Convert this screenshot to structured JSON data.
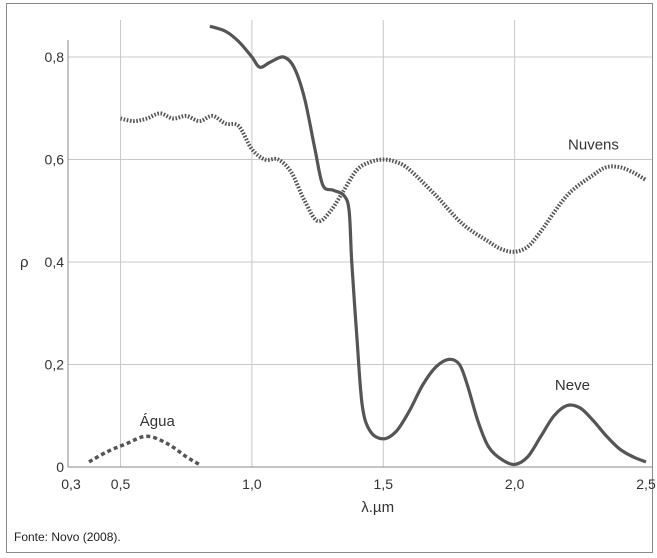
{
  "chart_data": {
    "type": "line",
    "xlabel": "λ.µm",
    "ylabel": "ρ",
    "xlim": [
      0.3,
      2.5
    ],
    "ylim": [
      0,
      0.8
    ],
    "grid": true,
    "x_ticks": [
      {
        "v": 0.3,
        "t": "0,3"
      },
      {
        "v": 0.5,
        "t": "0,5"
      },
      {
        "v": 1.0,
        "t": "1,0"
      },
      {
        "v": 1.5,
        "t": "1,5"
      },
      {
        "v": 2.0,
        "t": "2,0"
      },
      {
        "v": 2.5,
        "t": "2,5"
      }
    ],
    "y_ticks": [
      {
        "v": 0,
        "t": "0"
      },
      {
        "v": 0.2,
        "t": "0,2"
      },
      {
        "v": 0.4,
        "t": "0,4"
      },
      {
        "v": 0.6,
        "t": "0,6"
      },
      {
        "v": 0.8,
        "t": "0,8"
      }
    ],
    "series": [
      {
        "name": "Neve",
        "style": "solid",
        "color": "#555555",
        "points": [
          [
            0.84,
            0.86
          ],
          [
            0.9,
            0.85
          ],
          [
            0.95,
            0.83
          ],
          [
            1.0,
            0.8
          ],
          [
            1.03,
            0.78
          ],
          [
            1.07,
            0.79
          ],
          [
            1.12,
            0.8
          ],
          [
            1.16,
            0.78
          ],
          [
            1.2,
            0.72
          ],
          [
            1.24,
            0.62
          ],
          [
            1.27,
            0.55
          ],
          [
            1.31,
            0.54
          ],
          [
            1.35,
            0.53
          ],
          [
            1.37,
            0.5
          ],
          [
            1.38,
            0.4
          ],
          [
            1.4,
            0.25
          ],
          [
            1.42,
            0.12
          ],
          [
            1.45,
            0.07
          ],
          [
            1.5,
            0.055
          ],
          [
            1.55,
            0.07
          ],
          [
            1.6,
            0.11
          ],
          [
            1.65,
            0.16
          ],
          [
            1.7,
            0.195
          ],
          [
            1.75,
            0.21
          ],
          [
            1.79,
            0.2
          ],
          [
            1.82,
            0.16
          ],
          [
            1.86,
            0.09
          ],
          [
            1.9,
            0.04
          ],
          [
            1.95,
            0.015
          ],
          [
            2.0,
            0.005
          ],
          [
            2.05,
            0.02
          ],
          [
            2.1,
            0.06
          ],
          [
            2.15,
            0.1
          ],
          [
            2.2,
            0.12
          ],
          [
            2.25,
            0.115
          ],
          [
            2.3,
            0.09
          ],
          [
            2.35,
            0.06
          ],
          [
            2.4,
            0.035
          ],
          [
            2.45,
            0.02
          ],
          [
            2.5,
            0.01
          ]
        ]
      },
      {
        "name": "Nuvens",
        "style": "dotted",
        "color": "#555555",
        "points": [
          [
            0.5,
            0.68
          ],
          [
            0.55,
            0.675
          ],
          [
            0.6,
            0.68
          ],
          [
            0.65,
            0.69
          ],
          [
            0.7,
            0.68
          ],
          [
            0.75,
            0.685
          ],
          [
            0.8,
            0.675
          ],
          [
            0.85,
            0.685
          ],
          [
            0.9,
            0.67
          ],
          [
            0.95,
            0.665
          ],
          [
            1.0,
            0.62
          ],
          [
            1.05,
            0.6
          ],
          [
            1.1,
            0.6
          ],
          [
            1.15,
            0.575
          ],
          [
            1.2,
            0.52
          ],
          [
            1.25,
            0.48
          ],
          [
            1.3,
            0.5
          ],
          [
            1.35,
            0.54
          ],
          [
            1.4,
            0.58
          ],
          [
            1.45,
            0.595
          ],
          [
            1.5,
            0.6
          ],
          [
            1.55,
            0.595
          ],
          [
            1.6,
            0.58
          ],
          [
            1.7,
            0.53
          ],
          [
            1.8,
            0.475
          ],
          [
            1.9,
            0.44
          ],
          [
            1.95,
            0.425
          ],
          [
            2.0,
            0.42
          ],
          [
            2.05,
            0.43
          ],
          [
            2.1,
            0.46
          ],
          [
            2.2,
            0.53
          ],
          [
            2.3,
            0.57
          ],
          [
            2.35,
            0.585
          ],
          [
            2.4,
            0.585
          ],
          [
            2.45,
            0.575
          ],
          [
            2.5,
            0.56
          ]
        ]
      },
      {
        "name": "Água",
        "style": "dashed",
        "color": "#555555",
        "points": [
          [
            0.38,
            0.01
          ],
          [
            0.45,
            0.03
          ],
          [
            0.52,
            0.045
          ],
          [
            0.6,
            0.06
          ],
          [
            0.68,
            0.045
          ],
          [
            0.75,
            0.02
          ],
          [
            0.8,
            0.005
          ]
        ]
      }
    ],
    "labels": [
      {
        "text": "Nuvens",
        "x": 2.3,
        "y": 0.62
      },
      {
        "text": "Neve",
        "x": 2.22,
        "y": 0.15
      },
      {
        "text": "Água",
        "x": 0.64,
        "y": 0.08
      }
    ]
  },
  "footer": {
    "source": "Fonte: Novo (2008)."
  }
}
